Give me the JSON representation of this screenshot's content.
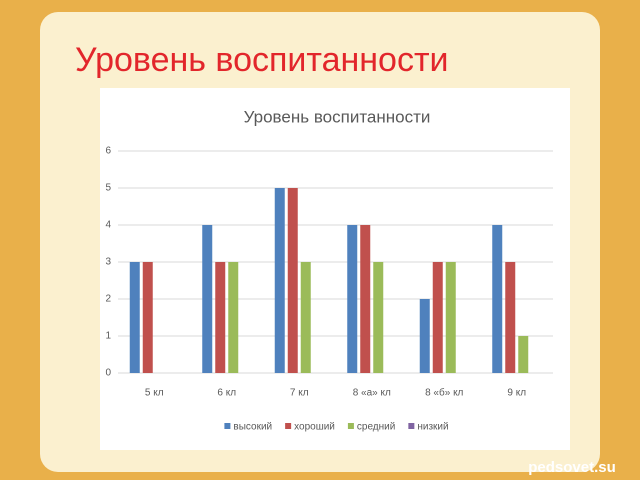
{
  "slide_title": "Уровень воспитанности",
  "watermark": "pedsovet.su",
  "chart_data": {
    "type": "bar",
    "title": "Уровень воспитанности",
    "categories": [
      "5 кл",
      "6 кл",
      "7 кл",
      "8 «а» кл",
      "8 «б» кл",
      "9 кл"
    ],
    "series": [
      {
        "name": "высокий",
        "color": "#4f81bd",
        "values": [
          3,
          4,
          5,
          4,
          2,
          4
        ]
      },
      {
        "name": "хороший",
        "color": "#c0504d",
        "values": [
          3,
          3,
          5,
          4,
          3,
          3
        ]
      },
      {
        "name": "средний",
        "color": "#9bbb59",
        "values": [
          0,
          3,
          3,
          3,
          3,
          1
        ]
      },
      {
        "name": "низкий",
        "color": "#8064a2",
        "values": [
          0,
          0,
          0,
          0,
          0,
          0
        ]
      }
    ],
    "ylim": [
      0,
      6
    ],
    "yticks": [
      0,
      1,
      2,
      3,
      4,
      5,
      6
    ],
    "grid": true,
    "legend": "bottom"
  }
}
